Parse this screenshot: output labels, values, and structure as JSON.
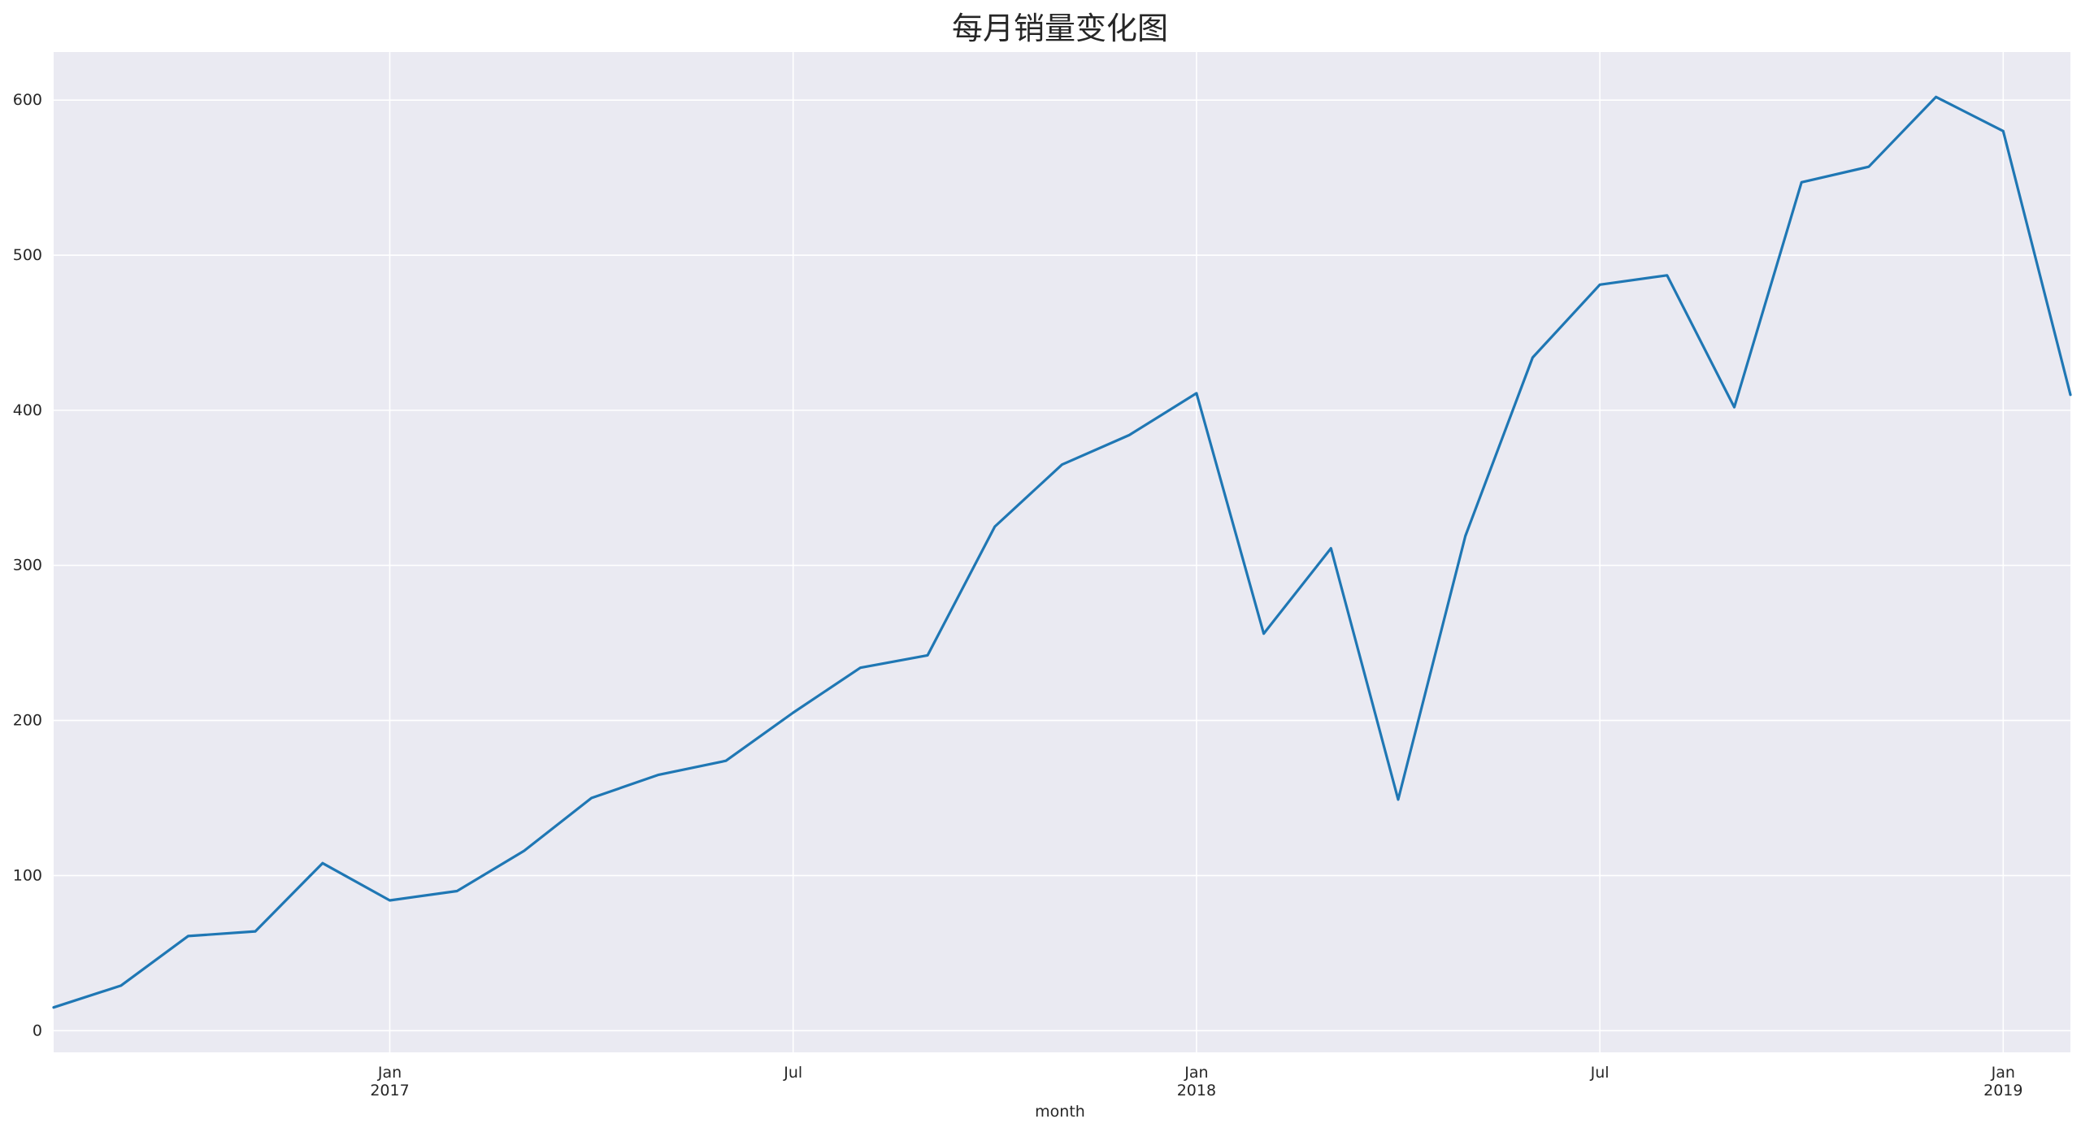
{
  "chart_data": {
    "type": "line",
    "title": "每月销量变化图",
    "xlabel": "month",
    "ylabel": "",
    "x": [
      "2016-08",
      "2016-09",
      "2016-10",
      "2016-11",
      "2016-12",
      "2017-01",
      "2017-02",
      "2017-03",
      "2017-04",
      "2017-05",
      "2017-06",
      "2017-07",
      "2017-08",
      "2017-09",
      "2017-10",
      "2017-11",
      "2017-12",
      "2018-01",
      "2018-02",
      "2018-03",
      "2018-04",
      "2018-05",
      "2018-06",
      "2018-07",
      "2018-08",
      "2018-09",
      "2018-10",
      "2018-11",
      "2018-12",
      "2019-01",
      "2019-02"
    ],
    "series": [
      {
        "values": [
          15,
          29,
          61,
          64,
          108,
          84,
          90,
          116,
          150,
          165,
          174,
          205,
          234,
          242,
          325,
          365,
          384,
          411,
          256,
          311,
          149,
          319,
          434,
          481,
          487,
          402,
          547,
          557,
          602,
          580,
          410
        ]
      }
    ],
    "xlim": [
      "2016-08",
      "2019-02"
    ],
    "ylim": [
      -14,
      631
    ],
    "yticks": [
      0,
      100,
      200,
      300,
      400,
      500,
      600
    ],
    "xticks": [
      {
        "date": "2017-01",
        "label": "Jan",
        "sublabel": "2017"
      },
      {
        "date": "2017-07",
        "label": "Jul",
        "sublabel": ""
      },
      {
        "date": "2018-01",
        "label": "Jan",
        "sublabel": "2018"
      },
      {
        "date": "2018-07",
        "label": "Jul",
        "sublabel": ""
      },
      {
        "date": "2019-01",
        "label": "Jan",
        "sublabel": "2019"
      }
    ],
    "grid": true,
    "colors": {
      "line": "#1f77b4",
      "plot_background": "#eaeaf2",
      "grid": "#ffffff",
      "text": "#262626"
    }
  }
}
